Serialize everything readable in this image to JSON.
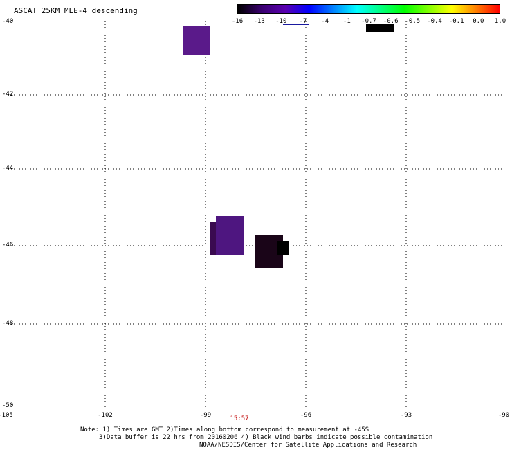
{
  "title": "ASCAT 25KM MLE-4 descending",
  "colorbar": {
    "colors": [
      "#000000",
      "#3a0070",
      "#5a00b0",
      "#0000ff",
      "#0080ff",
      "#00ffff",
      "#00ff80",
      "#00ff00",
      "#80ff00",
      "#ffff00",
      "#ff8000",
      "#ff0000"
    ],
    "labels": [
      "-16",
      "-13",
      "-10",
      "-7",
      "-4",
      "-1",
      "-0.7",
      "-0.6",
      "-0.5",
      "-0.4",
      "-0.1",
      "0.0",
      "1.0"
    ]
  },
  "axes": {
    "lat_labels": [
      "-40",
      "-42",
      "-44",
      "-46",
      "-48",
      "-50"
    ],
    "lon_labels": [
      "-105",
      "-102",
      "-99",
      "-96",
      "-93",
      "-90"
    ],
    "time_label": "15:57"
  },
  "cells": [
    {
      "lon": -99.3,
      "lat": -40.6,
      "color": "#5a1a8a"
    },
    {
      "lon": -98.3,
      "lat": -45.7,
      "color": "#4e1680"
    },
    {
      "lon": -97.1,
      "lat": -46.1,
      "color": "#1a0518"
    },
    {
      "lon": -94.4,
      "lat": -40.1,
      "color": "#000000"
    }
  ],
  "notes": [
    "Note: 1) Times are GMT 2)Times along bottom correspond to measurement at -45S",
    "3)Data buffer is 22 hrs from 20160206 4) Black wind barbs indicate possible contamination",
    "NOAA/NESDIS/Center for Satellite Applications and Research"
  ]
}
